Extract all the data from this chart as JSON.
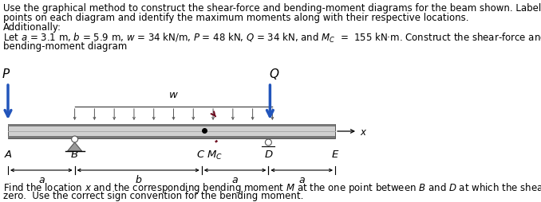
{
  "text_line1": "Use the graphical method to construct the shear-force and bending-moment diagrams for the beam shown. Label all significant",
  "text_line2": "points on each diagram and identify the maximum moments along with their respective locations.",
  "text_line3": "Additionally:",
  "text_line4": "Let $a$ = 3.1 m, $b$ = 5.9 m, $w$ = 34 kN/m, $P$ = 48 kN, $Q$ = 34 kN, and $M_C$  =  155 kN·m. Construct the shear-force and",
  "text_line5": "bending-moment diagram",
  "bot_line1": "Find the location $x$ and the corresponding bending moment $M$ at the one point between $B$ and $D$ at which the shear force equals",
  "bot_line2": "zero.  Use the correct sign convention for the bending moment.",
  "arrow_blue": "#2255bb",
  "moment_red": "#6b0a1e",
  "beam_light": "#d0d0d0",
  "beam_mid": "#b0b0b0",
  "beam_dark": "#787878",
  "support_gray": "#999999",
  "text_fs": 8.5,
  "label_fs": 9.5
}
